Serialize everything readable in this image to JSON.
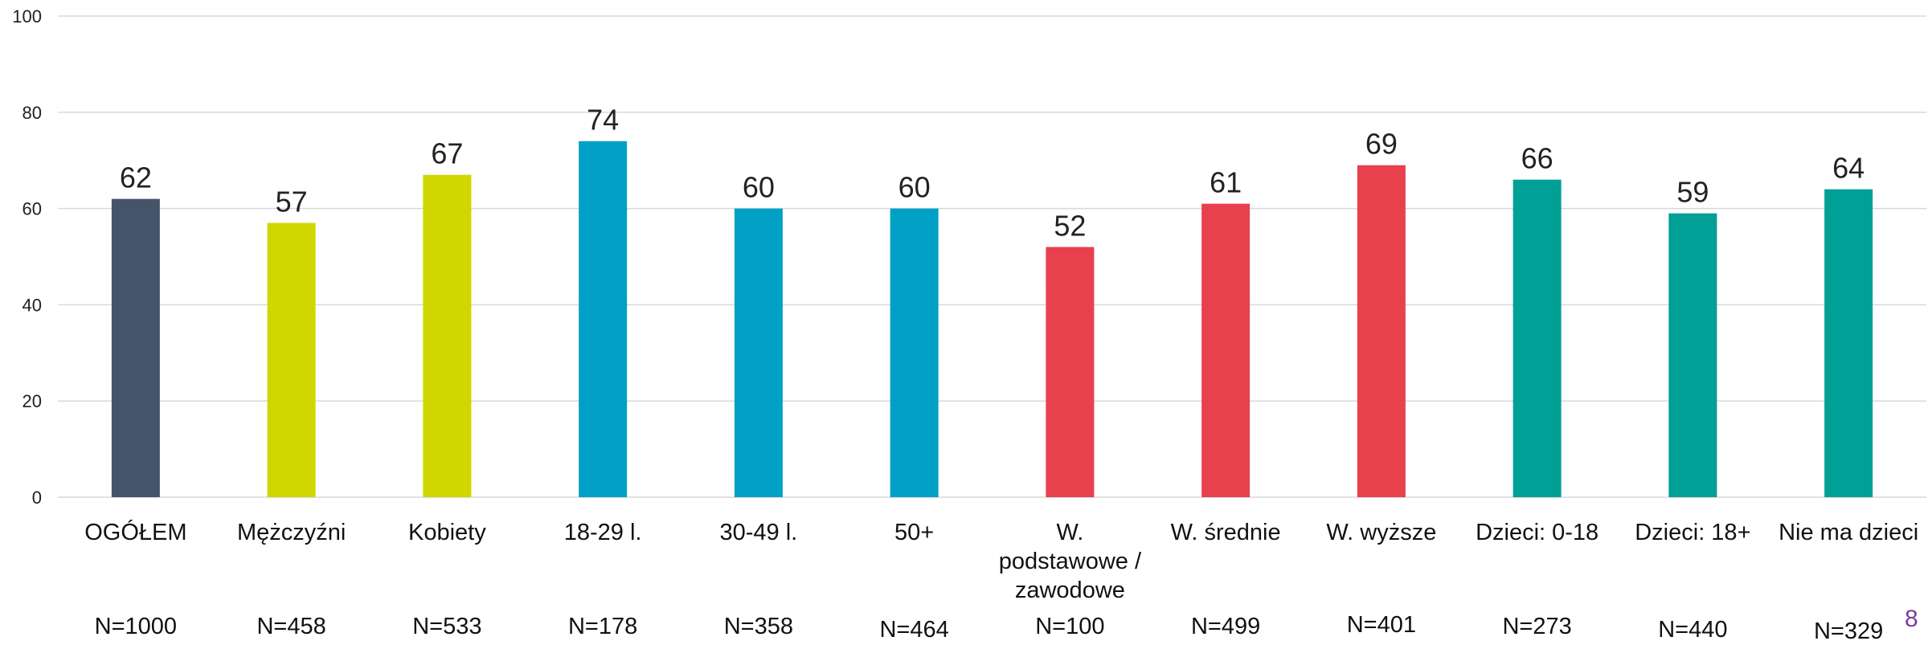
{
  "chart_data": {
    "type": "bar",
    "categories": [
      "OGÓŁEM",
      "Mężczyźni",
      "Kobiety",
      "18-29 l.",
      "30-49 l.",
      "50+",
      "W. podstawowe / zawodowe",
      "W. średnie",
      "W. wyższe",
      "Dzieci: 0-18",
      "Dzieci: 18+",
      "Nie ma dzieci"
    ],
    "values": [
      62,
      57,
      67,
      74,
      60,
      60,
      52,
      61,
      69,
      66,
      59,
      64
    ],
    "sample_sizes": [
      "N=1000",
      "N=458",
      "N=533",
      "N=178",
      "N=358",
      "N=464",
      "N=100",
      "N=499",
      "N=401",
      "N=273",
      "N=440",
      "N=329"
    ],
    "colors": [
      "#44546a",
      "#cfd600",
      "#cfd600",
      "#00a0c6",
      "#00a0c6",
      "#00a0c6",
      "#e8404d",
      "#e8404d",
      "#e8404d",
      "#00a096",
      "#00a096",
      "#00a096"
    ],
    "ylim": [
      0,
      100
    ],
    "yticks": [
      0,
      20,
      40,
      60,
      80,
      100
    ],
    "grid": true,
    "gridline_color": "#d9d9d9"
  },
  "page_number": "8",
  "page_number_color": "#7b3f98"
}
